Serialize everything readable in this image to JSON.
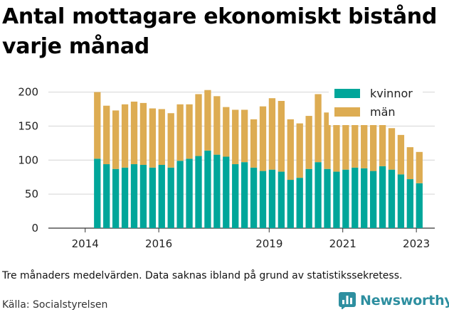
{
  "title": "Antal mottagare ekonomiskt bistånd varje månad",
  "note": "Tre månaders medelvärden. Data saknas ibland på grund av statistikssekretess.",
  "source": "Källa: Socialstyrelsen",
  "brand": {
    "name": "Newsworthy",
    "color": "#2e8fa0"
  },
  "chart_data": {
    "type": "bar",
    "stacked": true,
    "x_tick_labels": [
      "2014",
      "2016",
      "2019",
      "2021",
      "2023"
    ],
    "x_tick_values": [
      2014.0,
      2016.0,
      2019.0,
      2021.0,
      2023.0
    ],
    "y_ticks": [
      0,
      50,
      100,
      150,
      200
    ],
    "ylim": [
      0,
      210
    ],
    "xlim": [
      2013.0,
      2023.5
    ],
    "grid": true,
    "legend_position": "top-right",
    "x": [
      2014.33,
      2014.58,
      2014.83,
      2015.08,
      2015.33,
      2015.58,
      2015.83,
      2016.08,
      2016.33,
      2016.58,
      2016.83,
      2017.08,
      2017.33,
      2017.58,
      2017.83,
      2018.08,
      2018.33,
      2018.58,
      2018.83,
      2019.08,
      2019.33,
      2019.58,
      2019.83,
      2020.08,
      2020.33,
      2020.58,
      2020.83,
      2021.08,
      2021.33,
      2021.58,
      2021.83,
      2022.08,
      2022.33,
      2022.58,
      2022.83,
      2023.08
    ],
    "series": [
      {
        "name": "kvinnor",
        "color": "#00a69a",
        "values": [
          102,
          94,
          87,
          89,
          94,
          93,
          89,
          93,
          89,
          99,
          102,
          106,
          114,
          108,
          105,
          94,
          97,
          89,
          84,
          86,
          83,
          71,
          74,
          87,
          97,
          87,
          83,
          86,
          89,
          88,
          84,
          91,
          86,
          79,
          72,
          66
        ]
      },
      {
        "name": "män",
        "color": "#ddac52",
        "values": [
          98,
          86,
          86,
          93,
          92,
          91,
          87,
          82,
          80,
          83,
          80,
          91,
          89,
          86,
          73,
          80,
          77,
          71,
          95,
          105,
          104,
          89,
          80,
          78,
          100,
          83,
          76,
          67,
          70,
          69,
          73,
          63,
          61,
          58,
          47,
          46
        ]
      }
    ]
  }
}
